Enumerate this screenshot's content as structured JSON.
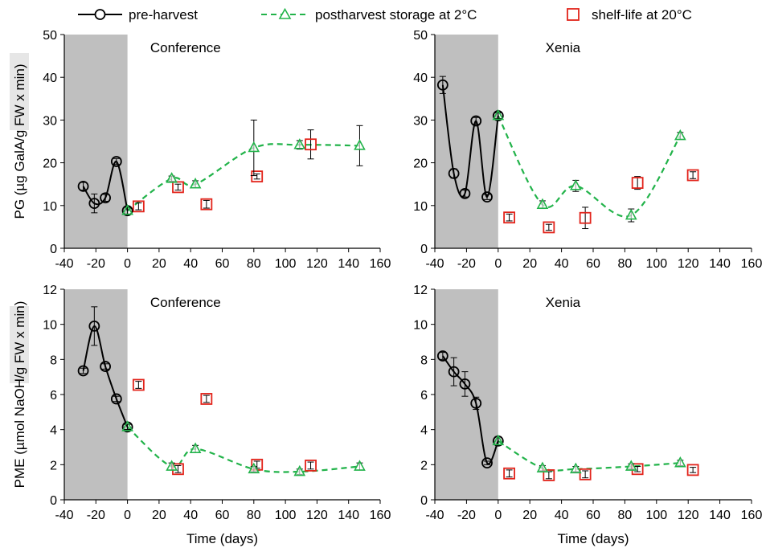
{
  "colors": {
    "pre": "#000000",
    "post": "#22b34a",
    "shelf": "#e2231a",
    "shade": "#bfbfbf"
  },
  "legend": {
    "pre_label": "pre-harvest",
    "post_label": "postharvest storage at 2°C",
    "shelf_label": "shelf-life at 20°C"
  },
  "chart_data": [
    {
      "type": "scatter",
      "title": "Conference",
      "ylabel": "PG (µg GalA/g FW x min)",
      "xlabel": "",
      "xlim": [
        -40,
        160
      ],
      "ylim": [
        0,
        50
      ],
      "xticks": [
        -40,
        -20,
        0,
        20,
        40,
        60,
        80,
        100,
        120,
        140,
        160
      ],
      "yticks": [
        0,
        10,
        20,
        30,
        40,
        50
      ],
      "shaded_region": [
        -40,
        0
      ],
      "series": [
        {
          "name": "pre-harvest",
          "x": [
            -28,
            -21,
            -14,
            -7,
            0
          ],
          "y": [
            14.5,
            10.5,
            11.8,
            20.3,
            8.8
          ],
          "err": [
            0.9,
            2.2,
            0.8,
            0.7,
            0.8
          ]
        },
        {
          "name": "postharvest storage at 2°C",
          "x": [
            0,
            28,
            43,
            80,
            109,
            147
          ],
          "y": [
            8.8,
            16.3,
            15.0,
            23.5,
            24.2,
            24.0
          ],
          "err": [
            0.8,
            0.6,
            0.8,
            6.5,
            1.0,
            4.7
          ]
        },
        {
          "name": "shelf-life at 20°C",
          "x": [
            7,
            32,
            50,
            82,
            116
          ],
          "y": [
            9.8,
            14.3,
            10.3,
            16.8,
            24.3
          ],
          "err": [
            0.8,
            0.7,
            0.9,
            0.6,
            3.4
          ]
        }
      ]
    },
    {
      "type": "scatter",
      "title": "Xenia",
      "ylabel": "",
      "xlabel": "",
      "xlim": [
        -40,
        160
      ],
      "ylim": [
        0,
        50
      ],
      "xticks": [
        -40,
        -20,
        0,
        20,
        40,
        60,
        80,
        100,
        120,
        140,
        160
      ],
      "yticks": [
        0,
        10,
        20,
        30,
        40,
        50
      ],
      "shaded_region": [
        -40,
        0
      ],
      "series": [
        {
          "name": "pre-harvest",
          "x": [
            -35,
            -28,
            -21,
            -14,
            -7,
            0
          ],
          "y": [
            38.2,
            17.5,
            12.8,
            29.8,
            12.0,
            31.0
          ],
          "err": [
            2.0,
            1.1,
            0.8,
            0.8,
            0.6,
            0.7
          ]
        },
        {
          "name": "postharvest storage at 2°C",
          "x": [
            0,
            28,
            49,
            84,
            115
          ],
          "y": [
            31.0,
            10.2,
            14.6,
            7.7,
            26.3
          ],
          "err": [
            0.7,
            0.9,
            1.3,
            1.5,
            0.8
          ]
        },
        {
          "name": "shelf-life at 20°C",
          "x": [
            7,
            32,
            55,
            88,
            123
          ],
          "y": [
            7.2,
            4.9,
            7.1,
            15.3,
            17.1
          ],
          "err": [
            0.8,
            0.7,
            2.5,
            1.5,
            0.8
          ]
        }
      ]
    },
    {
      "type": "scatter",
      "title": "Conference",
      "ylabel": "PME (µmol NaOH/g FW x min)",
      "xlabel": "Time (days)",
      "xlim": [
        -40,
        160
      ],
      "ylim": [
        0,
        12
      ],
      "xticks": [
        -40,
        -20,
        0,
        20,
        40,
        60,
        80,
        100,
        120,
        140,
        160
      ],
      "yticks": [
        0,
        2,
        4,
        6,
        8,
        10,
        12
      ],
      "shaded_region": [
        -40,
        0
      ],
      "series": [
        {
          "name": "pre-harvest",
          "x": [
            -28,
            -21,
            -14,
            -7,
            0
          ],
          "y": [
            7.35,
            9.9,
            7.6,
            5.75,
            4.15
          ],
          "err": [
            0.15,
            1.1,
            0.15,
            0.15,
            0.15
          ]
        },
        {
          "name": "postharvest storage at 2°C",
          "x": [
            0,
            28,
            43,
            80,
            109,
            147
          ],
          "y": [
            4.15,
            1.9,
            2.9,
            1.75,
            1.6,
            1.9
          ],
          "err": [
            0.15,
            0.2,
            0.2,
            0.15,
            0.15,
            0.2
          ]
        },
        {
          "name": "shelf-life at 20°C",
          "x": [
            7,
            32,
            50,
            82,
            116
          ],
          "y": [
            6.55,
            1.75,
            5.75,
            2.0,
            1.95
          ],
          "err": [
            0.2,
            0.2,
            0.2,
            0.2,
            0.2
          ]
        }
      ]
    },
    {
      "type": "scatter",
      "title": "Xenia",
      "ylabel": "",
      "xlabel": "Time (days)",
      "xlim": [
        -40,
        160
      ],
      "ylim": [
        0,
        12
      ],
      "xticks": [
        -40,
        -20,
        0,
        20,
        40,
        60,
        80,
        100,
        120,
        140,
        160
      ],
      "yticks": [
        0,
        2,
        4,
        6,
        8,
        10,
        12
      ],
      "shaded_region": [
        -40,
        0
      ],
      "series": [
        {
          "name": "pre-harvest",
          "x": [
            -35,
            -28,
            -21,
            -14,
            -7,
            0
          ],
          "y": [
            8.2,
            7.3,
            6.6,
            5.5,
            2.1,
            3.35
          ],
          "err": [
            0.2,
            0.8,
            0.7,
            0.35,
            0.1,
            0.25
          ]
        },
        {
          "name": "postharvest storage at 2°C",
          "x": [
            0,
            28,
            49,
            84,
            115
          ],
          "y": [
            3.35,
            1.8,
            1.75,
            1.9,
            2.1
          ],
          "err": [
            0.25,
            0.15,
            0.15,
            0.15,
            0.15
          ]
        },
        {
          "name": "shelf-life at 20°C",
          "x": [
            7,
            32,
            55,
            88,
            123
          ],
          "y": [
            1.5,
            1.4,
            1.45,
            1.75,
            1.7
          ],
          "err": [
            0.2,
            0.2,
            0.2,
            0.15,
            0.15
          ]
        }
      ]
    }
  ]
}
